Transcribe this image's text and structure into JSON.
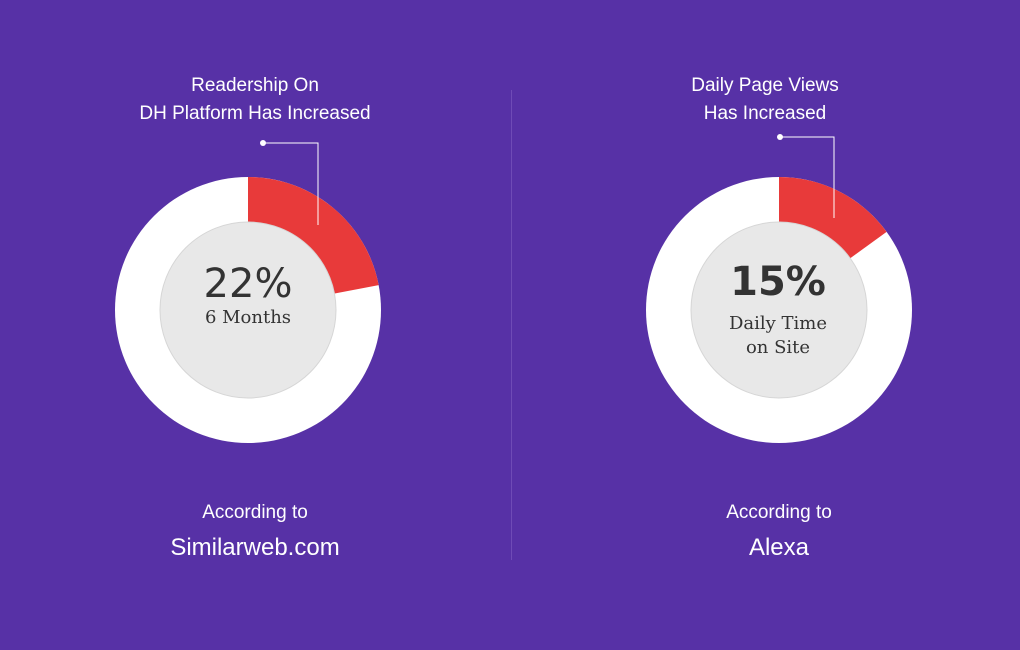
{
  "colors": {
    "background": "#5731a6",
    "ring": "#ffffff",
    "highlight": "#e83a3a",
    "inner": "#e8e8e8"
  },
  "chart_data": [
    {
      "type": "pie",
      "title_lines": [
        "Readership On",
        "DH Platform Has Increased"
      ],
      "value": 22,
      "value_label": "22%",
      "center_sub": [
        "6 Months"
      ],
      "source_prefix": "According to",
      "source_name": "Similarweb.com"
    },
    {
      "type": "pie",
      "title_lines": [
        "Daily Page Views",
        "Has Increased"
      ],
      "value": 15,
      "value_label": "15%",
      "center_sub": [
        "Daily Time",
        "on Site"
      ],
      "source_prefix": "According to",
      "source_name": "Alexa"
    }
  ]
}
